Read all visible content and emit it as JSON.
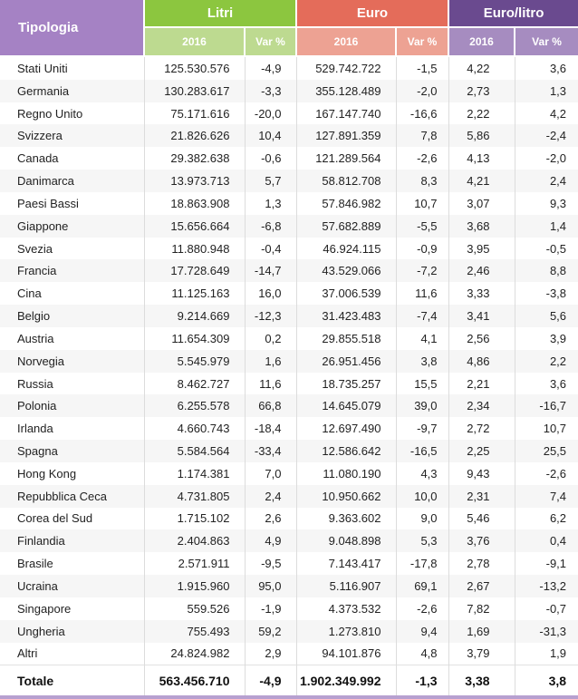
{
  "header": {
    "tipologia": "Tipologia",
    "groups": [
      "Litri",
      "Euro",
      "Euro/litro"
    ],
    "subheaders": [
      "2016",
      "Var %",
      "2016",
      "Var %",
      "2016",
      "Var %"
    ]
  },
  "rows": [
    [
      "Stati Uniti",
      "125.530.576",
      "-4,9",
      "529.742.722",
      "-1,5",
      "4,22",
      "3,6"
    ],
    [
      "Germania",
      "130.283.617",
      "-3,3",
      "355.128.489",
      "-2,0",
      "2,73",
      "1,3"
    ],
    [
      "Regno Unito",
      "75.171.616",
      "-20,0",
      "167.147.740",
      "-16,6",
      "2,22",
      "4,2"
    ],
    [
      "Svizzera",
      "21.826.626",
      "10,4",
      "127.891.359",
      "7,8",
      "5,86",
      "-2,4"
    ],
    [
      "Canada",
      "29.382.638",
      "-0,6",
      "121.289.564",
      "-2,6",
      "4,13",
      "-2,0"
    ],
    [
      "Danimarca",
      "13.973.713",
      "5,7",
      "58.812.708",
      "8,3",
      "4,21",
      "2,4"
    ],
    [
      "Paesi Bassi",
      "18.863.908",
      "1,3",
      "57.846.982",
      "10,7",
      "3,07",
      "9,3"
    ],
    [
      "Giappone",
      "15.656.664",
      "-6,8",
      "57.682.889",
      "-5,5",
      "3,68",
      "1,4"
    ],
    [
      "Svezia",
      "11.880.948",
      "-0,4",
      "46.924.115",
      "-0,9",
      "3,95",
      "-0,5"
    ],
    [
      "Francia",
      "17.728.649",
      "-14,7",
      "43.529.066",
      "-7,2",
      "2,46",
      "8,8"
    ],
    [
      "Cina",
      "11.125.163",
      "16,0",
      "37.006.539",
      "11,6",
      "3,33",
      "-3,8"
    ],
    [
      "Belgio",
      "9.214.669",
      "-12,3",
      "31.423.483",
      "-7,4",
      "3,41",
      "5,6"
    ],
    [
      "Austria",
      "11.654.309",
      "0,2",
      "29.855.518",
      "4,1",
      "2,56",
      "3,9"
    ],
    [
      "Norvegia",
      "5.545.979",
      "1,6",
      "26.951.456",
      "3,8",
      "4,86",
      "2,2"
    ],
    [
      "Russia",
      "8.462.727",
      "11,6",
      "18.735.257",
      "15,5",
      "2,21",
      "3,6"
    ],
    [
      "Polonia",
      "6.255.578",
      "66,8",
      "14.645.079",
      "39,0",
      "2,34",
      "-16,7"
    ],
    [
      "Irlanda",
      "4.660.743",
      "-18,4",
      "12.697.490",
      "-9,7",
      "2,72",
      "10,7"
    ],
    [
      "Spagna",
      "5.584.564",
      "-33,4",
      "12.586.642",
      "-16,5",
      "2,25",
      "25,5"
    ],
    [
      "Hong Kong",
      "1.174.381",
      "7,0",
      "11.080.190",
      "4,3",
      "9,43",
      "-2,6"
    ],
    [
      "Repubblica Ceca",
      "4.731.805",
      "2,4",
      "10.950.662",
      "10,0",
      "2,31",
      "7,4"
    ],
    [
      "Corea del Sud",
      "1.715.102",
      "2,6",
      "9.363.602",
      "9,0",
      "5,46",
      "6,2"
    ],
    [
      "Finlandia",
      "2.404.863",
      "4,9",
      "9.048.898",
      "5,3",
      "3,76",
      "0,4"
    ],
    [
      "Brasile",
      "2.571.911",
      "-9,5",
      "7.143.417",
      "-17,8",
      "2,78",
      "-9,1"
    ],
    [
      "Ucraina",
      "1.915.960",
      "95,0",
      "5.116.907",
      "69,1",
      "2,67",
      "-13,2"
    ],
    [
      "Singapore",
      "559.526",
      "-1,9",
      "4.373.532",
      "-2,6",
      "7,82",
      "-0,7"
    ],
    [
      "Ungheria",
      "755.493",
      "59,2",
      "1.273.810",
      "9,4",
      "1,69",
      "-31,3"
    ],
    [
      "Altri",
      "24.824.982",
      "2,9",
      "94.101.876",
      "4,8",
      "3,79",
      "1,9"
    ]
  ],
  "total": [
    "Totale",
    "563.456.710",
    "-4,9",
    "1.902.349.992",
    "-1,3",
    "3,38",
    "3,8"
  ],
  "colors": {
    "tipologia": "#a582c4",
    "litri": "#8cc63f",
    "litri_sub": "#bdda90",
    "euro": "#e46c5a",
    "euro_sub": "#eda293",
    "euro_litro": "#6a4a8f",
    "euro_litro_sub": "#a68cc0"
  }
}
